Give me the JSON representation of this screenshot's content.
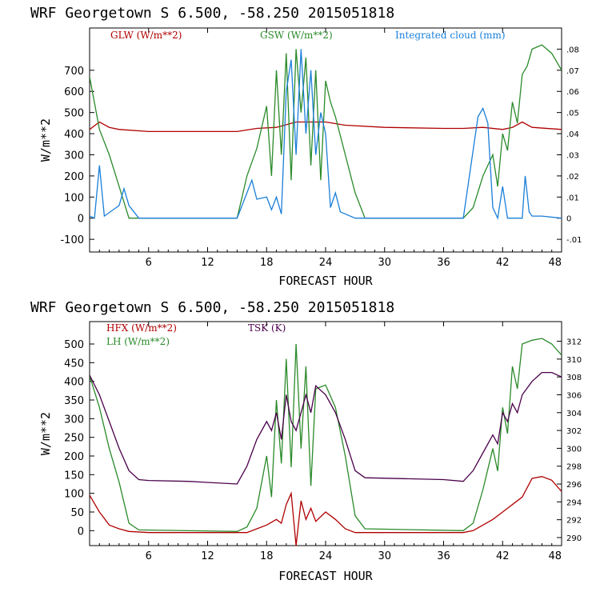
{
  "chart_data": [
    {
      "type": "line",
      "title": "WRF   Georgetown S   6.500, -58.250  2015051818",
      "xlabel": "FORECAST HOUR",
      "ylabel": "W/m**2",
      "xlim": [
        0,
        48
      ],
      "ylim": [
        -160,
        900
      ],
      "y2lim": [
        -0.016,
        0.09
      ],
      "xticks": [
        6,
        12,
        18,
        24,
        30,
        36,
        42,
        48
      ],
      "yticks": [
        -100,
        0,
        100,
        200,
        300,
        400,
        500,
        600,
        700
      ],
      "y2ticks": [
        -0.01,
        0,
        0.01,
        0.02,
        0.03,
        0.04,
        0.05,
        0.06,
        0.07,
        0.08
      ],
      "y2ticklabels": [
        "-.01",
        "0",
        ".01",
        ".02",
        ".03",
        ".04",
        ".05",
        ".06",
        ".07",
        ".08"
      ],
      "series": [
        {
          "name": "GLW (W/m**2)",
          "color": "#b00000",
          "axis": "left",
          "points": [
            [
              0,
              420
            ],
            [
              1,
              455
            ],
            [
              2,
              430
            ],
            [
              3,
              420
            ],
            [
              6,
              410
            ],
            [
              12,
              410
            ],
            [
              15,
              410
            ],
            [
              17,
              425
            ],
            [
              19,
              430
            ],
            [
              21,
              455
            ],
            [
              24,
              455
            ],
            [
              26,
              440
            ],
            [
              30,
              430
            ],
            [
              36,
              425
            ],
            [
              38,
              425
            ],
            [
              40,
              430
            ],
            [
              42,
              420
            ],
            [
              43,
              430
            ],
            [
              44,
              455
            ],
            [
              45,
              430
            ],
            [
              48,
              420
            ]
          ]
        },
        {
          "name": "GSW (W/m**2)",
          "color": "#2a8a2a",
          "axis": "left",
          "points": [
            [
              0,
              670
            ],
            [
              1,
              420
            ],
            [
              2,
              300
            ],
            [
              3,
              150
            ],
            [
              4,
              0
            ],
            [
              15,
              0
            ],
            [
              16,
              200
            ],
            [
              17,
              330
            ],
            [
              18,
              530
            ],
            [
              18.5,
              200
            ],
            [
              19,
              700
            ],
            [
              19.5,
              300
            ],
            [
              20,
              780
            ],
            [
              20.5,
              180
            ],
            [
              21,
              800
            ],
            [
              21.5,
              500
            ],
            [
              22,
              760
            ],
            [
              22.5,
              250
            ],
            [
              23,
              700
            ],
            [
              23.5,
              180
            ],
            [
              24,
              650
            ],
            [
              24.5,
              550
            ],
            [
              25,
              480
            ],
            [
              26,
              300
            ],
            [
              27,
              120
            ],
            [
              28,
              0
            ],
            [
              38,
              0
            ],
            [
              39,
              50
            ],
            [
              40,
              200
            ],
            [
              41,
              300
            ],
            [
              41.5,
              150
            ],
            [
              42,
              400
            ],
            [
              42.5,
              320
            ],
            [
              43,
              550
            ],
            [
              43.5,
              450
            ],
            [
              44,
              680
            ],
            [
              44.5,
              720
            ],
            [
              45,
              800
            ],
            [
              46,
              820
            ],
            [
              47,
              780
            ],
            [
              48,
              700
            ]
          ]
        },
        {
          "name": "Integrated cloud (mm)",
          "color": "#1a7fd8",
          "axis": "right",
          "points": [
            [
              0,
              0.001
            ],
            [
              0.5,
              0
            ],
            [
              1,
              0.025
            ],
            [
              1.5,
              0.001
            ],
            [
              3,
              0.006
            ],
            [
              3.5,
              0.014
            ],
            [
              4,
              0.006
            ],
            [
              5,
              0
            ],
            [
              15,
              0
            ],
            [
              16,
              0.012
            ],
            [
              16.5,
              0.018
            ],
            [
              17,
              0.009
            ],
            [
              18,
              0.01
            ],
            [
              18.5,
              0.004
            ],
            [
              19,
              0.01
            ],
            [
              19.5,
              0.002
            ],
            [
              20,
              0.06
            ],
            [
              20.5,
              0.075
            ],
            [
              21,
              0.03
            ],
            [
              21.5,
              0.08
            ],
            [
              22,
              0.04
            ],
            [
              22.5,
              0.07
            ],
            [
              23,
              0.03
            ],
            [
              23.5,
              0.05
            ],
            [
              24,
              0.04
            ],
            [
              24.5,
              0.005
            ],
            [
              25,
              0.012
            ],
            [
              25.5,
              0.003
            ],
            [
              27,
              0
            ],
            [
              38,
              0
            ],
            [
              39.5,
              0.048
            ],
            [
              40,
              0.052
            ],
            [
              40.5,
              0.045
            ],
            [
              41,
              0.005
            ],
            [
              41.5,
              0
            ],
            [
              42,
              0.015
            ],
            [
              42.5,
              0
            ],
            [
              44,
              0
            ],
            [
              44.3,
              0.02
            ],
            [
              44.7,
              0.003
            ],
            [
              45,
              0.001
            ],
            [
              46,
              0.001
            ],
            [
              48,
              0
            ]
          ]
        }
      ]
    },
    {
      "type": "line",
      "title": "WRF   Georgetown S   6.500, -58.250  2015051818",
      "xlabel": "FORECAST HOUR",
      "ylabel": "W/m**2",
      "xlim": [
        0,
        48
      ],
      "ylim": [
        -40,
        560
      ],
      "y2lim": [
        289.1,
        314.2
      ],
      "xticks": [
        6,
        12,
        18,
        24,
        30,
        36,
        42,
        48
      ],
      "yticks": [
        0,
        50,
        100,
        150,
        200,
        250,
        300,
        350,
        400,
        450,
        500
      ],
      "y2ticks": [
        290,
        292,
        294,
        296,
        298,
        300,
        302,
        304,
        306,
        308,
        310,
        312
      ],
      "series": [
        {
          "name": "HFX (W/m**2)",
          "color": "#b00000",
          "axis": "left",
          "points": [
            [
              0,
              95
            ],
            [
              1,
              50
            ],
            [
              2,
              15
            ],
            [
              3,
              5
            ],
            [
              4,
              -2
            ],
            [
              6,
              -5
            ],
            [
              12,
              -5
            ],
            [
              16,
              -5
            ],
            [
              17,
              5
            ],
            [
              18,
              15
            ],
            [
              19,
              30
            ],
            [
              19.5,
              20
            ],
            [
              20,
              70
            ],
            [
              20.5,
              100
            ],
            [
              21,
              -40
            ],
            [
              21.5,
              80
            ],
            [
              22,
              30
            ],
            [
              22.5,
              60
            ],
            [
              23,
              25
            ],
            [
              24,
              50
            ],
            [
              25,
              30
            ],
            [
              26,
              5
            ],
            [
              27,
              -5
            ],
            [
              38,
              -5
            ],
            [
              39,
              0
            ],
            [
              40,
              15
            ],
            [
              41,
              30
            ],
            [
              42,
              50
            ],
            [
              43,
              70
            ],
            [
              44,
              90
            ],
            [
              45,
              140
            ],
            [
              46,
              145
            ],
            [
              47,
              135
            ],
            [
              48,
              105
            ]
          ]
        },
        {
          "name": "LH (W/m**2)",
          "color": "#2a8a2a",
          "axis": "left",
          "points": [
            [
              0,
              415
            ],
            [
              1,
              330
            ],
            [
              2,
              220
            ],
            [
              3,
              130
            ],
            [
              4,
              20
            ],
            [
              5,
              2
            ],
            [
              15,
              -2
            ],
            [
              16,
              10
            ],
            [
              17,
              60
            ],
            [
              18,
              200
            ],
            [
              18.5,
              90
            ],
            [
              19,
              350
            ],
            [
              19.5,
              180
            ],
            [
              20,
              460
            ],
            [
              20.5,
              170
            ],
            [
              21,
              500
            ],
            [
              21.5,
              220
            ],
            [
              22,
              440
            ],
            [
              22.5,
              120
            ],
            [
              23,
              380
            ],
            [
              24,
              390
            ],
            [
              25,
              330
            ],
            [
              26,
              200
            ],
            [
              27,
              40
            ],
            [
              28,
              5
            ],
            [
              38,
              0
            ],
            [
              39,
              20
            ],
            [
              40,
              110
            ],
            [
              41,
              220
            ],
            [
              41.5,
              160
            ],
            [
              42,
              330
            ],
            [
              42.5,
              260
            ],
            [
              43,
              440
            ],
            [
              43.5,
              380
            ],
            [
              44,
              500
            ],
            [
              45,
              510
            ],
            [
              46,
              515
            ],
            [
              47,
              500
            ],
            [
              48,
              470
            ]
          ]
        },
        {
          "name": "TSK (K)",
          "color": "#4a004a",
          "axis": "right",
          "points": [
            [
              0,
              308.2
            ],
            [
              1,
              306
            ],
            [
              2,
              303
            ],
            [
              3,
              300
            ],
            [
              4,
              297.5
            ],
            [
              5,
              296.5
            ],
            [
              6,
              296.4
            ],
            [
              10,
              296.3
            ],
            [
              15,
              296
            ],
            [
              16,
              298
            ],
            [
              17,
              301
            ],
            [
              18,
              303
            ],
            [
              18.5,
              302
            ],
            [
              19,
              304
            ],
            [
              19.5,
              301
            ],
            [
              20,
              306
            ],
            [
              20.5,
              303
            ],
            [
              21,
              302
            ],
            [
              21.5,
              304
            ],
            [
              22,
              306
            ],
            [
              22.5,
              304
            ],
            [
              23,
              307
            ],
            [
              24,
              306
            ],
            [
              25,
              304
            ],
            [
              26,
              301
            ],
            [
              27,
              297.5
            ],
            [
              28,
              296.7
            ],
            [
              36,
              296.5
            ],
            [
              38,
              296.3
            ],
            [
              39,
              297.5
            ],
            [
              40,
              299.5
            ],
            [
              41,
              301.5
            ],
            [
              41.5,
              300.5
            ],
            [
              42,
              304
            ],
            [
              42.5,
              303
            ],
            [
              43,
              305
            ],
            [
              43.5,
              304
            ],
            [
              44,
              306
            ],
            [
              45,
              307.5
            ],
            [
              46,
              308.5
            ],
            [
              47,
              308.5
            ],
            [
              48,
              308
            ]
          ]
        }
      ]
    }
  ]
}
